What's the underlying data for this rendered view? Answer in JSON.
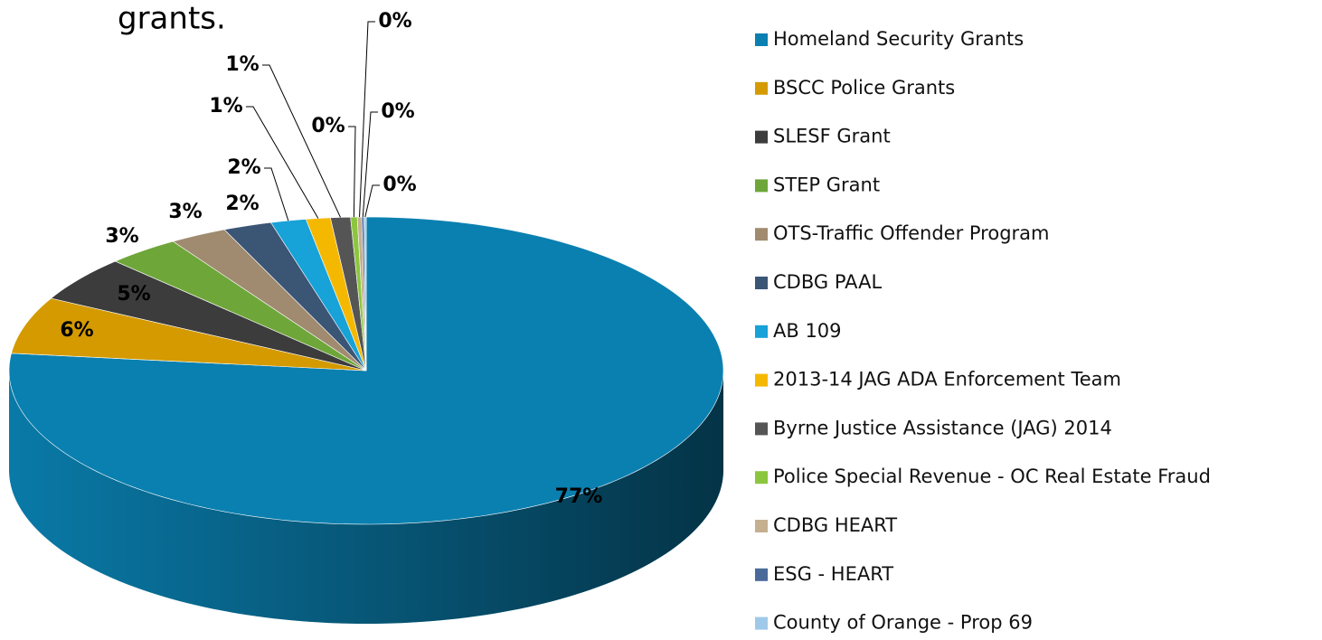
{
  "chart_data": {
    "type": "pie3d",
    "title": "grants.",
    "categories": [
      "Homeland Security Grants",
      "BSCC Police Grants",
      "SLESF Grant",
      "STEP Grant",
      "OTS-Traffic Offender Program",
      "CDBG PAAL",
      "AB 109",
      "2013-14 JAG ADA Enforcement Team",
      "Byrne Justice Assistance (JAG) 2014",
      "Police Special Revenue - OC Real Estate Fraud",
      "CDBG HEART",
      "ESG - HEART",
      "County of Orange - Prop 69"
    ],
    "values": [
      76.8,
      6.0,
      4.8,
      3.3,
      2.6,
      2.2,
      1.6,
      1.1,
      0.9,
      0.3,
      0.2,
      0.1,
      0.1
    ],
    "value_labels": [
      "77%",
      "6%",
      "5%",
      "3%",
      "3%",
      "2%",
      "2%",
      "1%",
      "1%",
      "0%",
      "0%",
      "0%",
      "0%"
    ],
    "colors": [
      "#0a80b0",
      "#d49a00",
      "#3c3c3c",
      "#6ea63a",
      "#a08b70",
      "#3b5575",
      "#17a2d8",
      "#f5b800",
      "#555555",
      "#8cc63f",
      "#c4b08f",
      "#4a6a9a",
      "#9fc9e8"
    ],
    "legend": "right"
  }
}
